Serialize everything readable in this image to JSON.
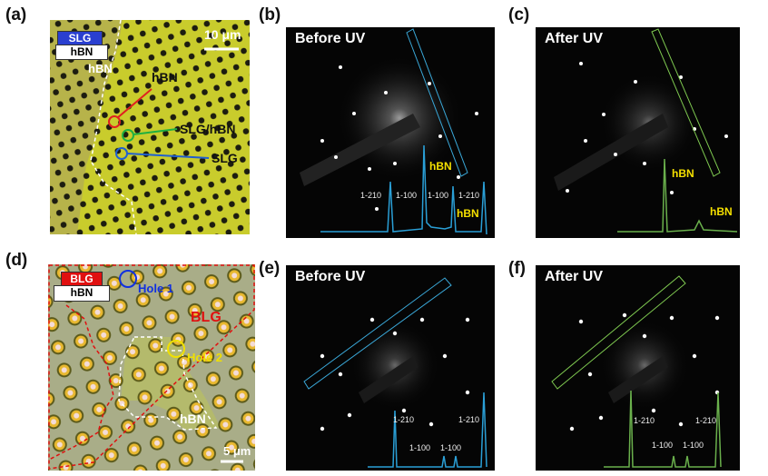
{
  "panels": {
    "a": {
      "label": "(a)",
      "tag_top": "SLG",
      "tag_bottom": "hBN",
      "scale": "10 μm",
      "region_hbn": "hBN",
      "arrow_hbn": "hBN",
      "arrow_slg_hbn": "SLG/hBN",
      "arrow_slg": "SLG"
    },
    "b": {
      "label": "(b)",
      "title": "Before UV",
      "peaks": [
        "1-210",
        "1-100",
        "1-100",
        "1-210"
      ],
      "hbn1": "hBN",
      "hbn2": "hBN"
    },
    "c": {
      "label": "(c)",
      "title": "After UV",
      "hbn1": "hBN",
      "hbn2": "hBN"
    },
    "d": {
      "label": "(d)",
      "tag_top": "BLG",
      "tag_bottom": "hBN",
      "hole1": "Hole 1",
      "hole2": "Hole 2",
      "region_blg": "BLG",
      "region_hbn": "hBN",
      "scale": "5 μm"
    },
    "e": {
      "label": "(e)",
      "title": "Before UV",
      "peaks": [
        "1-210",
        "1-100",
        "1-100",
        "1-210"
      ]
    },
    "f": {
      "label": "(f)",
      "title": "After UV",
      "peaks": [
        "1-210",
        "1-100",
        "1-100",
        "1-210"
      ]
    }
  },
  "colors": {
    "blue_profile": "#2a9fd6",
    "green_profile": "#6ab04c",
    "slg_tag": "#2a3fd0",
    "blg_tag": "#e01010"
  }
}
